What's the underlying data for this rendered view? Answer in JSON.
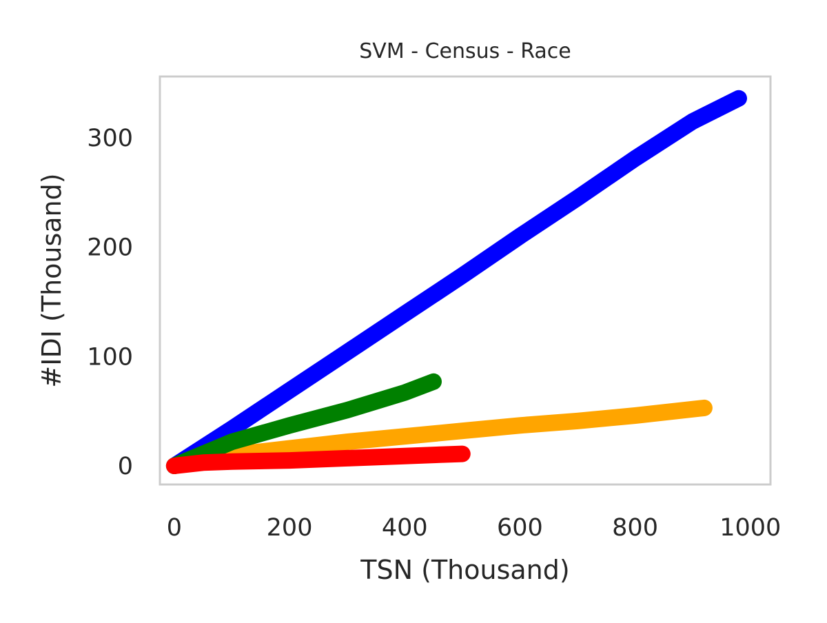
{
  "chart_data": {
    "type": "line",
    "title": "SVM - Census - Race",
    "xlabel": "TSN (Thousand)",
    "ylabel": "#IDI (Thousand)",
    "xlim": [
      -25,
      1035
    ],
    "ylim": [
      -17,
      356
    ],
    "xticks": [
      0,
      200,
      400,
      600,
      800,
      1000
    ],
    "yticks": [
      0,
      100,
      200,
      300
    ],
    "grid": false,
    "legend": "none",
    "series": [
      {
        "color": "#0000ff",
        "x": [
          0,
          100,
          200,
          300,
          400,
          500,
          600,
          700,
          800,
          900,
          980
        ],
        "y": [
          0,
          34,
          69,
          104,
          139,
          174,
          210,
          245,
          281,
          315,
          336
        ]
      },
      {
        "color": "#ffa500",
        "x": [
          0,
          50,
          100,
          200,
          300,
          400,
          500,
          600,
          700,
          800,
          920
        ],
        "y": [
          0,
          7,
          10,
          16,
          22,
          27,
          32,
          37,
          41,
          46,
          53
        ]
      },
      {
        "color": "#008000",
        "x": [
          0,
          100,
          200,
          300,
          400,
          450
        ],
        "y": [
          0,
          22,
          37,
          51,
          67,
          77
        ]
      },
      {
        "color": "#ff0000",
        "x": [
          0,
          50,
          100,
          200,
          300,
          400,
          500
        ],
        "y": [
          0,
          3,
          4,
          5,
          7,
          9,
          11
        ]
      }
    ]
  }
}
